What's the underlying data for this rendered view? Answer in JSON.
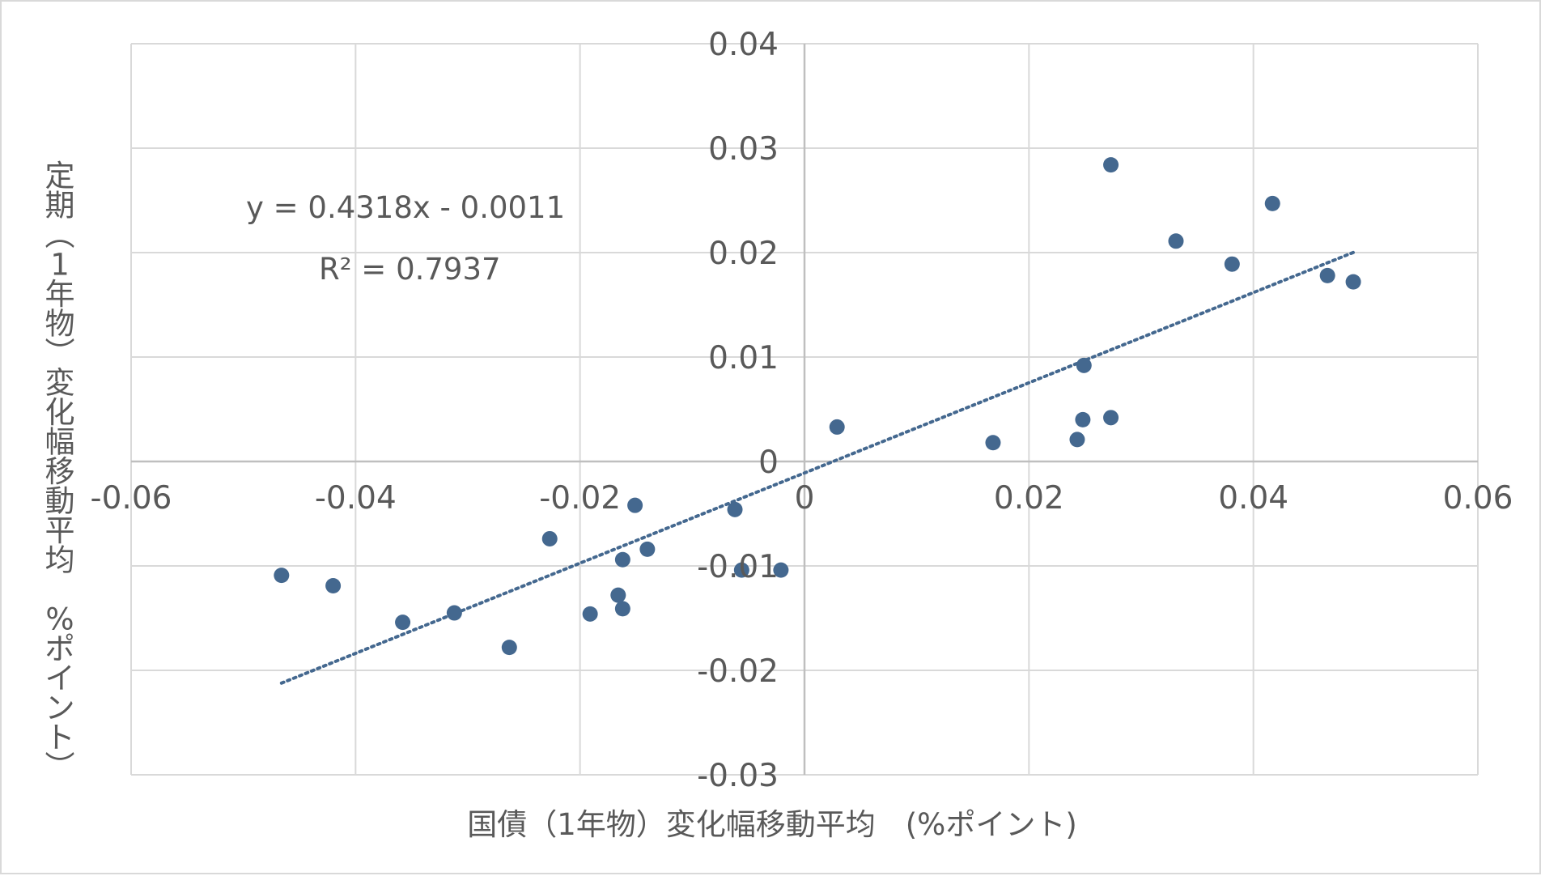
{
  "chart_data": {
    "type": "scatter",
    "title": "",
    "xlabel": "国債（1年物）変化幅移動平均　(%ポイント)",
    "ylabel": "定期（1年物）変化幅移動平均　%ポイント）",
    "xlim": [
      -0.06,
      0.06
    ],
    "ylim": [
      -0.03,
      0.04
    ],
    "x_ticks": [
      "-0.06",
      "-0.04",
      "-0.02",
      "0",
      "0.02",
      "0.04",
      "0.06"
    ],
    "y_ticks": [
      "-0.03",
      "-0.02",
      "-0.01",
      "0",
      "0.01",
      "0.02",
      "0.03",
      "0.04"
    ],
    "x_tick_values": [
      -0.06,
      -0.04,
      -0.02,
      0,
      0.02,
      0.04,
      0.06
    ],
    "y_tick_values": [
      -0.03,
      -0.02,
      -0.01,
      0,
      0.01,
      0.02,
      0.03,
      0.04
    ],
    "grid": true,
    "marker_color": "#44688f",
    "trendline": {
      "slope": 0.4318,
      "intercept": -0.0011,
      "x_range": [
        -0.0466,
        0.0489
      ],
      "style": "dotted",
      "color": "#44688f",
      "equation": "y = 0.4318x - 0.0011",
      "r_squared": "R² = 0.7937"
    },
    "points": [
      {
        "x": -0.0466,
        "y": -0.0109
      },
      {
        "x": -0.042,
        "y": -0.0119
      },
      {
        "x": -0.0358,
        "y": -0.0154
      },
      {
        "x": -0.0312,
        "y": -0.0145
      },
      {
        "x": -0.0263,
        "y": -0.0178
      },
      {
        "x": -0.0227,
        "y": -0.0074
      },
      {
        "x": -0.0191,
        "y": -0.0146
      },
      {
        "x": -0.0166,
        "y": -0.0128
      },
      {
        "x": -0.0162,
        "y": -0.0141
      },
      {
        "x": -0.0162,
        "y": -0.0094
      },
      {
        "x": -0.0151,
        "y": -0.0042
      },
      {
        "x": -0.014,
        "y": -0.0084
      },
      {
        "x": -0.0062,
        "y": -0.0046
      },
      {
        "x": -0.0056,
        "y": -0.0104
      },
      {
        "x": -0.0021,
        "y": -0.0104
      },
      {
        "x": 0.0029,
        "y": 0.0033
      },
      {
        "x": 0.0168,
        "y": 0.0018
      },
      {
        "x": 0.0243,
        "y": 0.0021
      },
      {
        "x": 0.0248,
        "y": 0.004
      },
      {
        "x": 0.0249,
        "y": 0.0092
      },
      {
        "x": 0.0273,
        "y": 0.0042
      },
      {
        "x": 0.0273,
        "y": 0.0284
      },
      {
        "x": 0.0331,
        "y": 0.0211
      },
      {
        "x": 0.0381,
        "y": 0.0189
      },
      {
        "x": 0.0417,
        "y": 0.0247
      },
      {
        "x": 0.0466,
        "y": 0.0178
      },
      {
        "x": 0.0489,
        "y": 0.0172
      }
    ]
  }
}
